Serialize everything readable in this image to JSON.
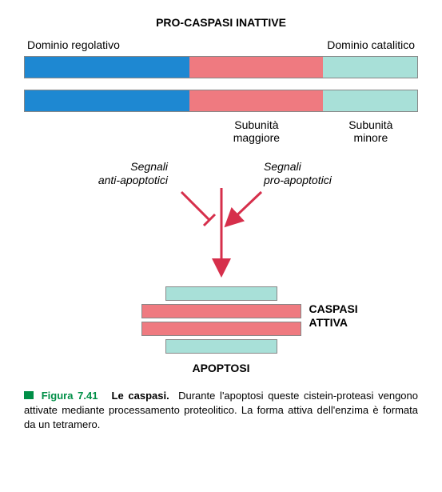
{
  "title": "PRO-CASPASI INATTIVE",
  "domains": {
    "left": "Dominio regolativo",
    "right": "Dominio catalitico"
  },
  "bar": {
    "segments": [
      {
        "width_pct": 42,
        "left_pct": 0,
        "color": "#1e88d2"
      },
      {
        "width_pct": 34,
        "left_pct": 42,
        "color": "#ef7a80"
      },
      {
        "width_pct": 24,
        "left_pct": 76,
        "color": "#a8e0d8"
      }
    ],
    "border": "#888"
  },
  "subunits": {
    "major": "Subunità\nmaggiore",
    "minor": "Subunità\nminore"
  },
  "signals": {
    "anti": "Segnali\nanti-apoptotici",
    "pro": "Segnali\npro-apoptotici",
    "arrow_color": "#d62f4b"
  },
  "tetramer": {
    "small_color": "#a8e0d8",
    "large_color": "#ef7a80",
    "label": "CASPASI\nATTIVA"
  },
  "apoptosi": "APOPTOSI",
  "caption": {
    "fig": "Figura 7.41",
    "title": "Le caspasi.",
    "text": "Durante l'apoptosi queste cistein-proteasi vengono attivate mediante processamento proteolitico. La forma attiva dell'enzima è formata da un tetramero."
  }
}
